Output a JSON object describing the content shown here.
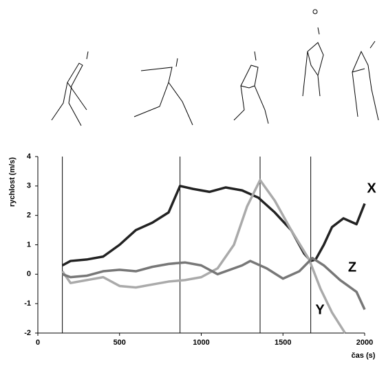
{
  "chart_data": {
    "type": "line",
    "y_label": "rychlost (m/s)",
    "x_label": "čas (s)",
    "xlim": [
      0,
      2000
    ],
    "xticks": [
      0,
      500,
      1000,
      1500,
      2000
    ],
    "ylim": [
      -2,
      4
    ],
    "yticks": [
      -2,
      -1,
      0,
      1,
      2,
      3,
      4
    ],
    "vlines": [
      150,
      870,
      1360,
      1670
    ],
    "series": [
      {
        "name": "X",
        "color": "#222222",
        "x": [
          150,
          200,
          300,
          400,
          500,
          600,
          700,
          800,
          870,
          950,
          1050,
          1150,
          1250,
          1350,
          1450,
          1550,
          1630,
          1670,
          1700,
          1750,
          1800,
          1870,
          1950,
          2000
        ],
        "values": [
          0.3,
          0.45,
          0.5,
          0.6,
          1.0,
          1.5,
          1.75,
          2.1,
          3.0,
          2.9,
          2.8,
          2.95,
          2.85,
          2.6,
          2.1,
          1.5,
          0.7,
          0.45,
          0.5,
          1.0,
          1.6,
          1.9,
          1.7,
          2.4
        ]
      },
      {
        "name": "Y",
        "color": "#aaaaaa",
        "x": [
          150,
          200,
          300,
          400,
          500,
          600,
          700,
          800,
          900,
          1000,
          1100,
          1200,
          1280,
          1360,
          1450,
          1550,
          1660,
          1730,
          1800,
          1880
        ],
        "values": [
          0.1,
          -0.3,
          -0.2,
          -0.1,
          -0.4,
          -0.45,
          -0.35,
          -0.25,
          -0.2,
          -0.1,
          0.2,
          1.0,
          2.3,
          3.2,
          2.5,
          1.5,
          0.5,
          -0.5,
          -1.3,
          -2
        ]
      },
      {
        "name": "Z",
        "color": "#777777",
        "x": [
          150,
          200,
          300,
          400,
          500,
          600,
          700,
          800,
          900,
          1000,
          1100,
          1250,
          1300,
          1400,
          1500,
          1600,
          1680,
          1750,
          1850,
          1950,
          2000
        ],
        "values": [
          0.0,
          -0.1,
          -0.05,
          0.1,
          0.15,
          0.1,
          0.25,
          0.35,
          0.4,
          0.3,
          0.0,
          0.3,
          0.45,
          0.2,
          -0.15,
          0.1,
          0.55,
          0.3,
          -0.2,
          -0.6,
          -1.2
        ]
      }
    ]
  }
}
